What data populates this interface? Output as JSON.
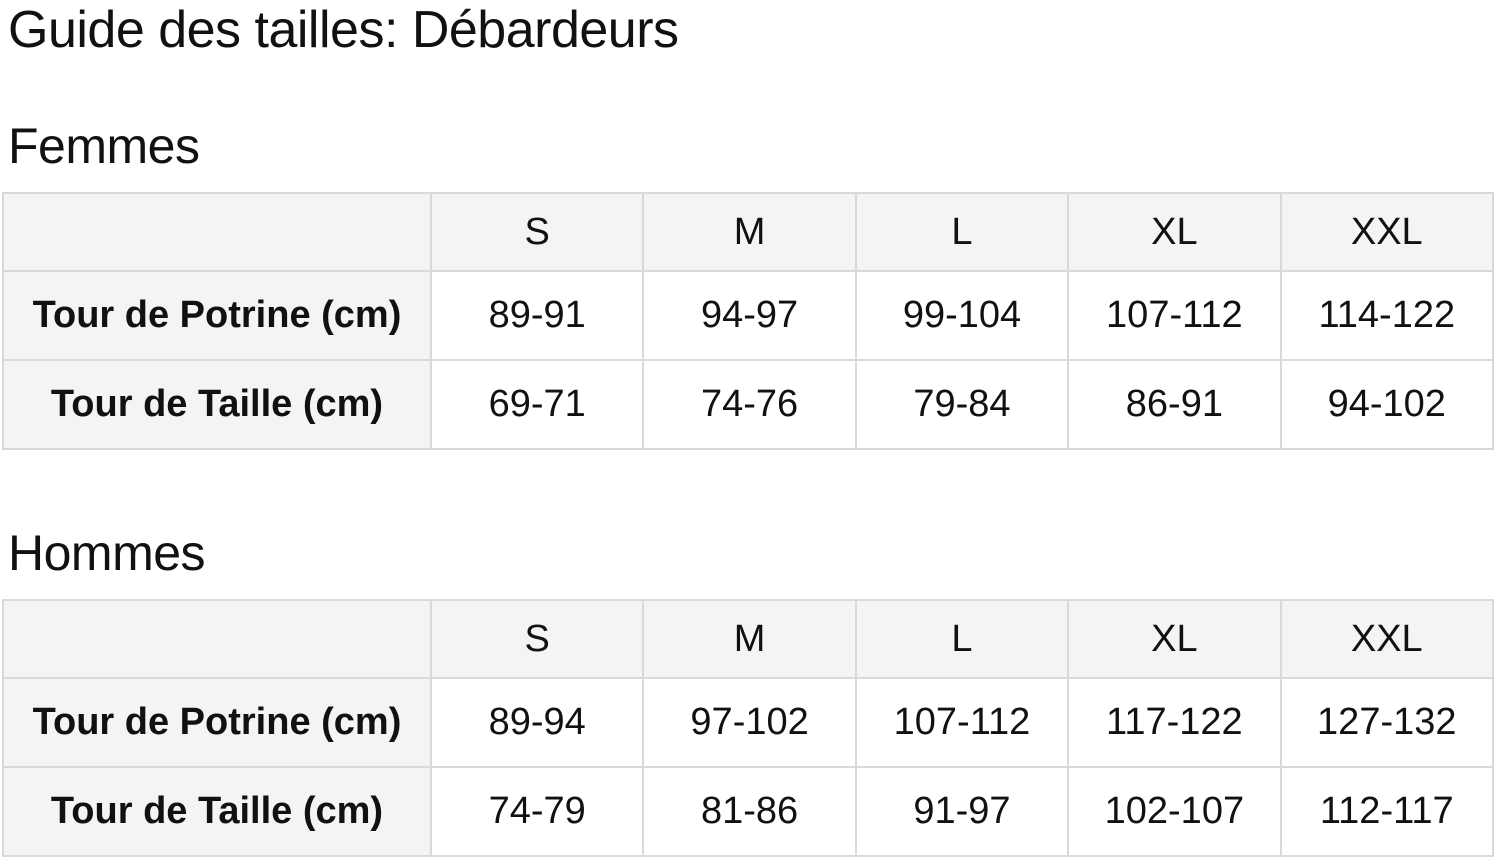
{
  "page": {
    "title": "Guide des tailles: Débardeurs"
  },
  "sections": [
    {
      "heading": "Femmes",
      "table": {
        "corner": "",
        "columns": [
          "S",
          "M",
          "L",
          "XL",
          "XXL"
        ],
        "rows": [
          {
            "label": "Tour de Potrine (cm)",
            "values": [
              "89-91",
              "94-97",
              "99-104",
              "107-112",
              "114-122"
            ]
          },
          {
            "label": "Tour de Taille (cm)",
            "values": [
              "69-71",
              "74-76",
              "79-84",
              "86-91",
              "94-102"
            ]
          }
        ]
      }
    },
    {
      "heading": "Hommes",
      "table": {
        "corner": "",
        "columns": [
          "S",
          "M",
          "L",
          "XL",
          "XXL"
        ],
        "rows": [
          {
            "label": "Tour de Potrine (cm)",
            "values": [
              "89-94",
              "97-102",
              "107-112",
              "117-122",
              "127-132"
            ]
          },
          {
            "label": "Tour de Taille (cm)",
            "values": [
              "74-79",
              "81-86",
              "91-97",
              "102-107",
              "112-117"
            ]
          }
        ]
      }
    }
  ],
  "colors": {
    "text": "#111111",
    "table_border": "#d9d9d9",
    "header_bg": "#f4f4f4",
    "cell_bg": "#ffffff",
    "page_bg": "#ffffff"
  }
}
